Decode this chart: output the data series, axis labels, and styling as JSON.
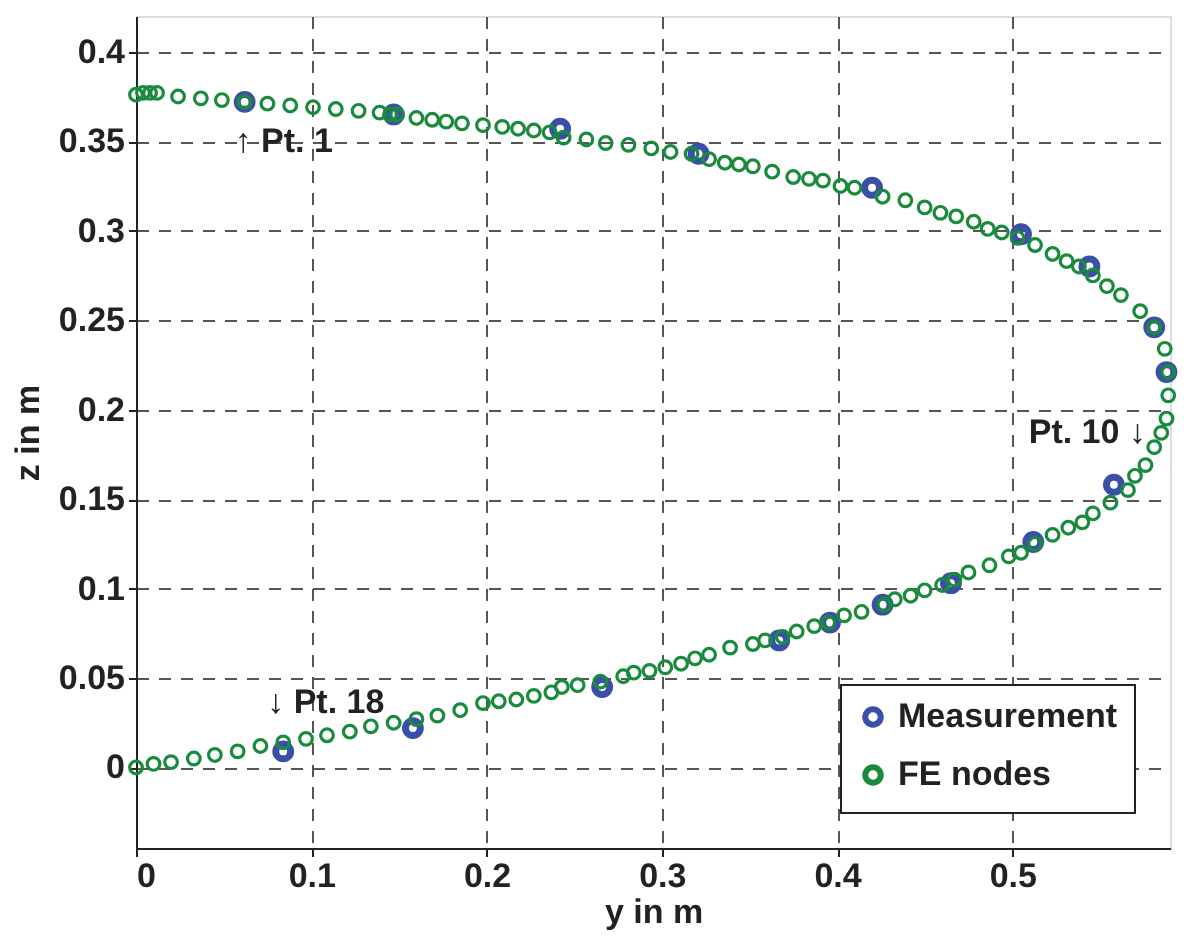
{
  "chart_data": {
    "type": "scatter",
    "xlabel": "y in m",
    "ylabel": "z in m",
    "xlim": [
      0,
      0.59
    ],
    "ylim": [
      -0.045,
      0.42
    ],
    "xticks": [
      0,
      0.1,
      0.2,
      0.3,
      0.4,
      0.5
    ],
    "yticks": [
      0,
      0.05,
      0.1,
      0.15,
      0.2,
      0.25,
      0.3,
      0.35,
      0.4
    ],
    "grid": true,
    "legend": "bottom right",
    "marker": "circle",
    "series": [
      {
        "name": "Measurement",
        "color": "#3a4fa8",
        "x": [
          0.062,
          0.147,
          0.242,
          0.321,
          0.42,
          0.505,
          0.544,
          0.581,
          0.588,
          0.558,
          0.512,
          0.465,
          0.426,
          0.396,
          0.367,
          0.266,
          0.158,
          0.084
        ],
        "values": [
          0.372,
          0.365,
          0.357,
          0.343,
          0.324,
          0.298,
          0.28,
          0.246,
          0.221,
          0.158,
          0.126,
          0.103,
          0.091,
          0.081,
          0.071,
          0.045,
          0.022,
          0.009
        ]
      },
      {
        "name": "FE nodes",
        "color": "#1a8a3c",
        "x": [
          0,
          0.004,
          0.008,
          0.012,
          0.024,
          0.037,
          0.049,
          0.062,
          0.075,
          0.088,
          0.101,
          0.114,
          0.127,
          0.139,
          0.145,
          0.149,
          0.16,
          0.169,
          0.177,
          0.186,
          0.198,
          0.209,
          0.218,
          0.227,
          0.236,
          0.244,
          0.257,
          0.268,
          0.281,
          0.294,
          0.305,
          0.317,
          0.327,
          0.336,
          0.344,
          0.352,
          0.363,
          0.375,
          0.384,
          0.392,
          0.402,
          0.41,
          0.426,
          0.439,
          0.45,
          0.459,
          0.468,
          0.478,
          0.486,
          0.494,
          0.503,
          0.513,
          0.523,
          0.531,
          0.538,
          0.546,
          0.554,
          0.562,
          0.573,
          0.581,
          0.587,
          0.589,
          0.589,
          0.588,
          0.585,
          0.581,
          0.576,
          0.57,
          0.566,
          0.556,
          0.546,
          0.54,
          0.532,
          0.523,
          0.513,
          0.505,
          0.498,
          0.487,
          0.475,
          0.467,
          0.46,
          0.45,
          0.442,
          0.433,
          0.427,
          0.414,
          0.404,
          0.395,
          0.387,
          0.377,
          0.369,
          0.359,
          0.352,
          0.339,
          0.327,
          0.319,
          0.311,
          0.302,
          0.293,
          0.284,
          0.278,
          0.265,
          0.252,
          0.243,
          0.237,
          0.227,
          0.217,
          0.207,
          0.198,
          0.185,
          0.172,
          0.16,
          0.147,
          0.134,
          0.122,
          0.109,
          0.097,
          0.084,
          0.071,
          0.058,
          0.045,
          0.033,
          0.02,
          0.01,
          0
        ],
        "values": [
          0.376,
          0.377,
          0.377,
          0.377,
          0.375,
          0.374,
          0.373,
          0.372,
          0.371,
          0.37,
          0.369,
          0.368,
          0.367,
          0.366,
          0.365,
          0.365,
          0.363,
          0.362,
          0.361,
          0.36,
          0.359,
          0.358,
          0.357,
          0.356,
          0.355,
          0.352,
          0.351,
          0.349,
          0.348,
          0.346,
          0.344,
          0.343,
          0.34,
          0.338,
          0.337,
          0.336,
          0.333,
          0.33,
          0.329,
          0.328,
          0.325,
          0.324,
          0.319,
          0.317,
          0.313,
          0.31,
          0.308,
          0.305,
          0.301,
          0.299,
          0.296,
          0.292,
          0.287,
          0.283,
          0.28,
          0.275,
          0.269,
          0.264,
          0.255,
          0.246,
          0.234,
          0.221,
          0.208,
          0.195,
          0.187,
          0.179,
          0.169,
          0.163,
          0.155,
          0.148,
          0.142,
          0.137,
          0.134,
          0.13,
          0.125,
          0.12,
          0.118,
          0.113,
          0.109,
          0.105,
          0.102,
          0.099,
          0.096,
          0.094,
          0.091,
          0.087,
          0.085,
          0.081,
          0.079,
          0.076,
          0.073,
          0.071,
          0.069,
          0.067,
          0.063,
          0.061,
          0.058,
          0.056,
          0.054,
          0.053,
          0.051,
          0.048,
          0.046,
          0.045,
          0.042,
          0.04,
          0.038,
          0.037,
          0.036,
          0.032,
          0.029,
          0.027,
          0.025,
          0.023,
          0.02,
          0.018,
          0.016,
          0.014,
          0.012,
          0.009,
          0.007,
          0.005,
          0.003,
          0.002,
          0
        ]
      }
    ],
    "annotations": [
      {
        "text": "↑ Pt. 1",
        "x": 0.062,
        "y": 0.372
      },
      {
        "text": "Pt. 10 ↓",
        "x": 0.558,
        "y": 0.158
      },
      {
        "text": "↓ Pt. 18",
        "x": 0.084,
        "y": 0.009
      }
    ]
  }
}
